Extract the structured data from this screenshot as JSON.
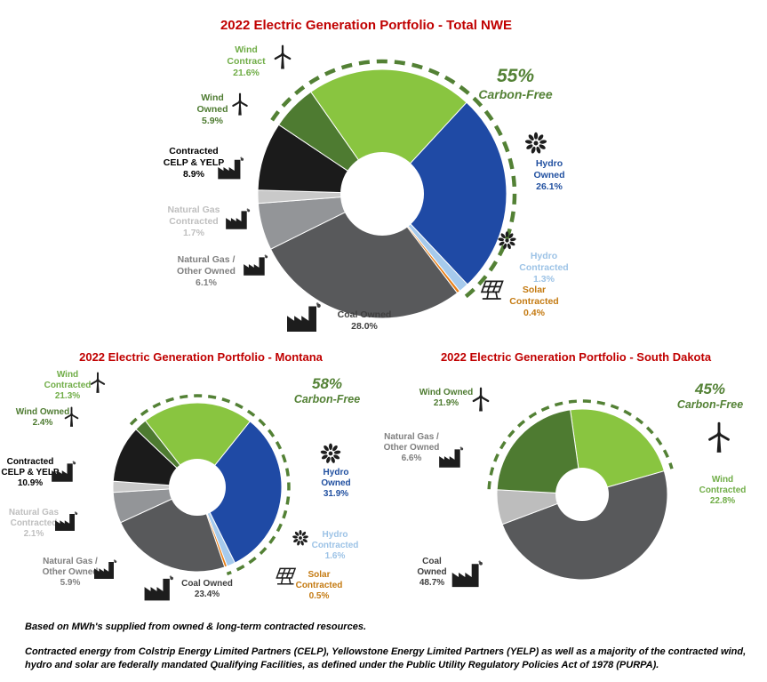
{
  "page": {
    "background": "#FFFFFF"
  },
  "colors": {
    "title_red": "#C00000",
    "carbon_free_green": "#538135",
    "icon_dark": "#1D1D1D"
  },
  "chart_data": [
    {
      "type": "pie",
      "donut": true,
      "title": "2022 Electric Generation Portfolio - Total NWE",
      "carbon_free": {
        "pct": "55%",
        "label": "Carbon-Free",
        "value": 55.3
      },
      "start_angle_deg": -35,
      "arc_start_deg": -56.24,
      "arc_end_deg": 142.84,
      "segments": [
        {
          "key": "wind-contract",
          "label": "Wind Contract",
          "pct": "21.6%",
          "value": 21.6,
          "color": "#89C540",
          "label_color": "#70AD47",
          "icon": "wind"
        },
        {
          "key": "hydro-owned",
          "label": "Hydro Owned",
          "pct": "26.1%",
          "value": 26.1,
          "color": "#1F4AA5",
          "label_color": "#2150A0",
          "icon": "hydro"
        },
        {
          "key": "hydro-contracted",
          "label": "Hydro Contracted",
          "pct": "1.3%",
          "value": 1.3,
          "color": "#A6CAEC",
          "label_color": "#9DC3E6",
          "icon": "hydro"
        },
        {
          "key": "solar-contracted",
          "label": "Solar Contracted",
          "pct": "0.4%",
          "value": 0.4,
          "color": "#E97E14",
          "label_color": "#C47A11",
          "icon": "solar"
        },
        {
          "key": "coal-owned",
          "label": "Coal Owned",
          "pct": "28.0%",
          "value": 28.0,
          "color": "#58595B",
          "label_color": "#3F3F3F",
          "icon": "factory"
        },
        {
          "key": "natural-gas-other-owned",
          "label": "Natural Gas / Other Owned",
          "pct": "6.1%",
          "value": 6.1,
          "color": "#939598",
          "label_color": "#808080",
          "icon": "factory"
        },
        {
          "key": "natural-gas-contracted",
          "label": "Natural Gas Contracted",
          "pct": "1.7%",
          "value": 1.7,
          "color": "#C9C9C9",
          "label_color": "#BFBFBF",
          "icon": "factory"
        },
        {
          "key": "contracted-celp-yelp",
          "label": "Contracted CELP & YELP",
          "pct": "8.9%",
          "value": 8.9,
          "color": "#1B1B1B",
          "label_color": "#000000",
          "icon": "factory"
        },
        {
          "key": "wind-owned",
          "label": "Wind Owned",
          "pct": "5.9%",
          "value": 5.9,
          "color": "#4E7B31",
          "label_color": "#4E7B31",
          "icon": "wind"
        }
      ]
    },
    {
      "type": "pie",
      "donut": true,
      "title": "2022 Electric Generation Portfolio - Montana",
      "carbon_free": {
        "pct": "58%",
        "label": "Carbon-Free",
        "value": 57.7
      },
      "start_angle_deg": -38,
      "arc_start_deg": -46.64,
      "arc_end_deg": 161.08,
      "segments": [
        {
          "key": "wind-contracted",
          "label": "Wind Contracted",
          "pct": "21.3%",
          "value": 21.3,
          "color": "#89C540",
          "label_color": "#70AD47",
          "icon": "wind"
        },
        {
          "key": "hydro-owned",
          "label": "Hydro Owned",
          "pct": "31.9%",
          "value": 31.9,
          "color": "#1F4AA5",
          "label_color": "#2150A0",
          "icon": "hydro"
        },
        {
          "key": "hydro-contracted",
          "label": "Hydro Contracted",
          "pct": "1.6%",
          "value": 1.6,
          "color": "#A6CAEC",
          "label_color": "#9DC3E6",
          "icon": "hydro"
        },
        {
          "key": "solar-contracted",
          "label": "Solar Contracted",
          "pct": "0.5%",
          "value": 0.5,
          "color": "#E97E14",
          "label_color": "#C47A11",
          "icon": "solar"
        },
        {
          "key": "coal-owned",
          "label": "Coal Owned",
          "pct": "23.4%",
          "value": 23.4,
          "color": "#58595B",
          "label_color": "#3F3F3F",
          "icon": "factory"
        },
        {
          "key": "natural-gas-other-owned",
          "label": "Natural Gas / Other Owned",
          "pct": "5.9%",
          "value": 5.9,
          "color": "#939598",
          "label_color": "#808080",
          "icon": "factory"
        },
        {
          "key": "natural-gas-contracted",
          "label": "Natural Gas Contracted",
          "pct": "2.1%",
          "value": 2.1,
          "color": "#C9C9C9",
          "label_color": "#BFBFBF",
          "icon": "factory"
        },
        {
          "key": "contracted-celp-yelp",
          "label": "Contracted CELP & YELP",
          "pct": "10.9%",
          "value": 10.9,
          "color": "#1B1B1B",
          "label_color": "#000000",
          "icon": "factory"
        },
        {
          "key": "wind-owned",
          "label": "Wind Owned",
          "pct": "2.4%",
          "value": 2.4,
          "color": "#4E7B31",
          "label_color": "#4E7B31",
          "icon": "wind"
        }
      ]
    },
    {
      "type": "pie",
      "donut": true,
      "title": "2022 Electric Generation Portfolio - South Dakota",
      "carbon_free": {
        "pct": "45%",
        "label": "Carbon-Free",
        "value": 44.7
      },
      "start_angle_deg": -8,
      "arc_start_deg": -86.84,
      "arc_end_deg": 74.08,
      "segments": [
        {
          "key": "wind-contracted",
          "label": "Wind Contracted",
          "pct": "22.8%",
          "value": 22.8,
          "color": "#89C540",
          "label_color": "#70AD47",
          "icon": "wind"
        },
        {
          "key": "coal-owned",
          "label": "Coal Owned",
          "pct": "48.7%",
          "value": 48.7,
          "color": "#58595B",
          "label_color": "#3F3F3F",
          "icon": "factory"
        },
        {
          "key": "natural-gas-other-owned",
          "label": "Natural Gas / Other Owned",
          "pct": "6.6%",
          "value": 6.6,
          "color": "#BDBDBD",
          "label_color": "#808080",
          "icon": "factory"
        },
        {
          "key": "wind-owned",
          "label": "Wind Owned",
          "pct": "21.9%",
          "value": 21.9,
          "color": "#4E7B31",
          "label_color": "#4E7B31",
          "icon": "wind"
        }
      ]
    }
  ],
  "footnotes": {
    "line1": "Based on MWh's supplied from owned & long-term contracted resources.",
    "line2": "Contracted energy from Colstrip Energy Limited Partners (CELP), Yellowstone Energy Limited Partners (YELP)  as well as a majority of the contracted wind, hydro and solar are federally mandated Qualifying Facilities, as defined under the Public Utility Regulatory Policies Act of 1978 (PURPA)."
  }
}
